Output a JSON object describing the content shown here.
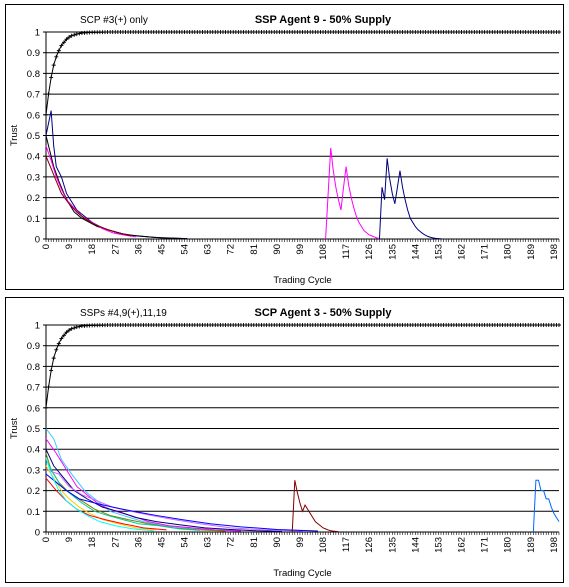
{
  "chart_data": [
    {
      "type": "line",
      "title": "SSP Agent 9 - 50% Supply",
      "annotation": "SCP #3(+) only",
      "xlabel": "Trading Cycle",
      "ylabel": "Trust",
      "xlim": [
        0,
        200
      ],
      "ylim": [
        0,
        1
      ],
      "yticks": [
        "0",
        "0.1",
        "0.2",
        "0.3",
        "0.4",
        "0.5",
        "0.6",
        "0.7",
        "0.8",
        "0.9",
        "1"
      ],
      "xticks": [
        "0",
        "9",
        "18",
        "27",
        "36",
        "45",
        "54",
        "63",
        "72",
        "81",
        "90",
        "99",
        "108",
        "117",
        "126",
        "135",
        "144",
        "153",
        "162",
        "171",
        "180",
        "189",
        "198"
      ],
      "grid": "horizontal",
      "legend": "none",
      "series": [
        {
          "color": "#000000",
          "marker": "+",
          "x": [
            0,
            1,
            2,
            3,
            4,
            5,
            6,
            7,
            8,
            9,
            10,
            12,
            14,
            16,
            18,
            20,
            25,
            30,
            40,
            60,
            100,
            150,
            200
          ],
          "y": [
            0.6,
            0.7,
            0.78,
            0.84,
            0.88,
            0.91,
            0.935,
            0.95,
            0.965,
            0.975,
            0.982,
            0.99,
            0.995,
            0.997,
            0.998,
            0.999,
            1,
            1,
            1,
            1,
            1,
            1,
            1
          ]
        },
        {
          "color": "#00007f",
          "x": [
            0,
            2,
            3,
            4,
            6,
            8,
            10,
            12,
            15,
            18,
            21,
            24,
            27,
            30,
            35,
            40,
            45,
            50,
            55
          ],
          "y": [
            0.5,
            0.62,
            0.45,
            0.35,
            0.3,
            0.22,
            0.18,
            0.14,
            0.11,
            0.08,
            0.06,
            0.045,
            0.035,
            0.025,
            0.015,
            0.01,
            0.006,
            0.004,
            0.002
          ]
        },
        {
          "color": "#000000",
          "x": [
            0,
            1,
            3,
            5,
            7,
            9,
            11,
            14,
            17,
            20,
            24,
            28,
            32,
            36,
            42,
            48,
            55
          ],
          "y": [
            0.5,
            0.45,
            0.35,
            0.28,
            0.22,
            0.17,
            0.13,
            0.1,
            0.08,
            0.06,
            0.045,
            0.03,
            0.02,
            0.015,
            0.008,
            0.004,
            0.002
          ]
        },
        {
          "color": "#ff00ff",
          "x": [
            0,
            2,
            4,
            6,
            8,
            11,
            14,
            18,
            22,
            26,
            30,
            35
          ],
          "y": [
            0.45,
            0.38,
            0.3,
            0.24,
            0.19,
            0.15,
            0.11,
            0.08,
            0.05,
            0.03,
            0.02,
            0.01
          ]
        },
        {
          "color": "#7f0000",
          "x": [
            0,
            2,
            4,
            6,
            9,
            12,
            15,
            19,
            23,
            28,
            33
          ],
          "y": [
            0.4,
            0.34,
            0.28,
            0.22,
            0.17,
            0.13,
            0.1,
            0.07,
            0.05,
            0.03,
            0.015
          ]
        },
        {
          "color": "#ff00ff",
          "x": [
            109,
            111,
            112,
            113,
            114,
            115,
            116,
            117,
            118,
            119,
            120,
            121,
            122,
            123,
            124,
            125,
            126,
            127,
            128,
            129,
            130
          ],
          "y": [
            0,
            0.44,
            0.33,
            0.25,
            0.19,
            0.14,
            0.25,
            0.35,
            0.26,
            0.2,
            0.15,
            0.11,
            0.08,
            0.06,
            0.04,
            0.03,
            0.02,
            0.015,
            0.01,
            0.005,
            0.002
          ]
        },
        {
          "color": "#00007f",
          "x": [
            130,
            131,
            132,
            133,
            134,
            135,
            136,
            137,
            138,
            139,
            140,
            141,
            142,
            143,
            144,
            145,
            146,
            147,
            148,
            149,
            150,
            151,
            152,
            153,
            154
          ],
          "y": [
            0,
            0.25,
            0.19,
            0.39,
            0.29,
            0.22,
            0.17,
            0.25,
            0.33,
            0.25,
            0.19,
            0.14,
            0.1,
            0.08,
            0.06,
            0.045,
            0.035,
            0.025,
            0.018,
            0.012,
            0.008,
            0.005,
            0.003,
            0.002,
            0.001
          ]
        }
      ]
    },
    {
      "type": "line",
      "title": "SCP Agent 3 - 50% Supply",
      "annotation": "SSPs #4,9(+),11,19",
      "xlabel": "Trading Cycle",
      "ylabel": "Trust",
      "xlim": [
        0,
        200
      ],
      "ylim": [
        0,
        1
      ],
      "yticks": [
        "0",
        "0.1",
        "0.2",
        "0.3",
        "0.4",
        "0.5",
        "0.6",
        "0.7",
        "0.8",
        "0.9",
        "1"
      ],
      "xticks": [
        "0",
        "9",
        "18",
        "27",
        "36",
        "45",
        "54",
        "63",
        "72",
        "81",
        "90",
        "99",
        "108",
        "117",
        "126",
        "135",
        "144",
        "153",
        "162",
        "171",
        "180",
        "189",
        "198"
      ],
      "grid": "horizontal",
      "legend": "none",
      "series": [
        {
          "color": "#000000",
          "marker": "+",
          "x": [
            0,
            1,
            2,
            3,
            4,
            5,
            6,
            7,
            8,
            9,
            10,
            12,
            14,
            16,
            18,
            20,
            25,
            30,
            40,
            60,
            100,
            150,
            200
          ],
          "y": [
            0.6,
            0.7,
            0.78,
            0.84,
            0.88,
            0.91,
            0.935,
            0.95,
            0.965,
            0.975,
            0.982,
            0.99,
            0.995,
            0.997,
            0.998,
            0.999,
            1,
            1,
            1,
            1,
            1,
            1,
            1
          ]
        },
        {
          "color": "#33ccff",
          "x": [
            0,
            3,
            6,
            10,
            15,
            20,
            25,
            30,
            38,
            46,
            55,
            65,
            75
          ],
          "y": [
            0.5,
            0.45,
            0.35,
            0.28,
            0.2,
            0.15,
            0.1,
            0.08,
            0.05,
            0.03,
            0.02,
            0.01,
            0.005
          ]
        },
        {
          "color": "#ff00ff",
          "x": [
            0,
            4,
            8,
            12,
            16,
            21,
            27,
            33,
            40,
            48,
            57,
            66,
            76
          ],
          "y": [
            0.45,
            0.38,
            0.3,
            0.22,
            0.18,
            0.13,
            0.1,
            0.08,
            0.05,
            0.03,
            0.02,
            0.01,
            0.005
          ]
        },
        {
          "color": "#00007f",
          "x": [
            0,
            3,
            7,
            11,
            16,
            22,
            28,
            35,
            43,
            52,
            62,
            72,
            82,
            92
          ],
          "y": [
            0.4,
            0.32,
            0.26,
            0.2,
            0.16,
            0.12,
            0.1,
            0.07,
            0.05,
            0.035,
            0.02,
            0.012,
            0.006,
            0.003
          ]
        },
        {
          "color": "#7f7f00",
          "x": [
            0,
            2,
            5,
            9,
            14,
            19,
            25,
            32,
            40,
            50,
            60,
            70
          ],
          "y": [
            0.38,
            0.3,
            0.24,
            0.19,
            0.15,
            0.11,
            0.08,
            0.06,
            0.04,
            0.02,
            0.01,
            0.005
          ]
        },
        {
          "color": "#00cc99",
          "x": [
            0,
            3,
            6,
            10,
            14,
            19,
            24,
            30,
            36,
            44,
            52,
            60
          ],
          "y": [
            0.35,
            0.28,
            0.22,
            0.18,
            0.14,
            0.1,
            0.08,
            0.06,
            0.04,
            0.03,
            0.015,
            0.008
          ]
        },
        {
          "color": "#cc66ff",
          "x": [
            0,
            5,
            9,
            14,
            20,
            26,
            33,
            41,
            50,
            60,
            72,
            85,
            100
          ],
          "y": [
            0.3,
            0.28,
            0.22,
            0.18,
            0.15,
            0.12,
            0.1,
            0.08,
            0.06,
            0.04,
            0.02,
            0.01,
            0.005
          ]
        },
        {
          "color": "#ffcc00",
          "x": [
            0,
            3,
            6,
            9,
            13,
            17,
            22,
            28,
            35,
            43
          ],
          "y": [
            0.32,
            0.26,
            0.2,
            0.16,
            0.12,
            0.09,
            0.06,
            0.04,
            0.02,
            0.01
          ]
        },
        {
          "color": "#0000ff",
          "x": [
            0,
            4,
            8,
            13,
            19,
            26,
            34,
            43,
            53,
            64,
            76,
            90,
            106
          ],
          "y": [
            0.28,
            0.24,
            0.2,
            0.16,
            0.14,
            0.12,
            0.1,
            0.08,
            0.06,
            0.04,
            0.025,
            0.012,
            0.005
          ]
        },
        {
          "color": "#ff0000",
          "x": [
            0,
            4,
            8,
            12,
            17,
            23,
            30,
            38,
            47
          ],
          "y": [
            0.26,
            0.2,
            0.15,
            0.11,
            0.08,
            0.06,
            0.04,
            0.02,
            0.01
          ]
        },
        {
          "color": "#00ffff",
          "x": [
            0,
            2,
            5,
            8,
            12,
            16,
            21,
            27,
            34,
            42
          ],
          "y": [
            0.36,
            0.28,
            0.2,
            0.15,
            0.11,
            0.08,
            0.05,
            0.03,
            0.015,
            0.006
          ]
        },
        {
          "color": "#7f0000",
          "x": [
            96,
            97,
            98,
            99,
            100,
            101,
            102,
            103,
            104,
            105,
            106,
            107,
            108,
            109,
            110,
            111,
            112,
            114
          ],
          "y": [
            0,
            0.25,
            0.19,
            0.14,
            0.1,
            0.13,
            0.11,
            0.09,
            0.07,
            0.05,
            0.04,
            0.03,
            0.02,
            0.015,
            0.01,
            0.006,
            0.004,
            0.002
          ]
        },
        {
          "color": "#0066ff",
          "x": [
            190,
            191,
            192,
            193,
            194,
            195,
            196,
            197,
            198,
            199,
            200
          ],
          "y": [
            0,
            0.25,
            0.25,
            0.2,
            0.2,
            0.16,
            0.16,
            0.12,
            0.09,
            0.07,
            0.05
          ]
        }
      ]
    }
  ]
}
